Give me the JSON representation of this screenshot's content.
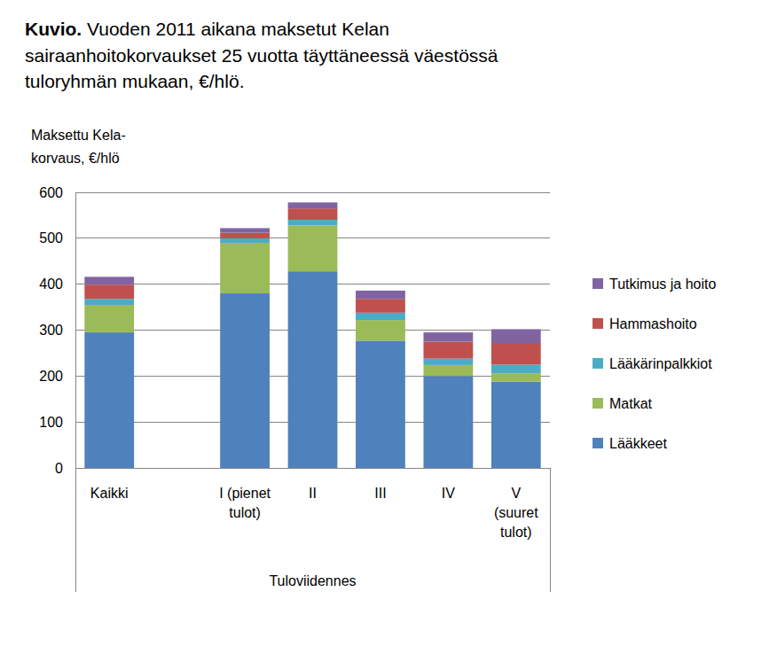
{
  "chart_data": {
    "type": "bar",
    "title": "Kuvio. Vuoden 2011 aikana maksetut Kelan sairaanhoitokorvaukset 25 vuotta täyttäneessä väestössä tuloryhmän mukaan, €/hlö.",
    "y_label": "Maksettu Kela-korvaus, €/hlö",
    "x_label": "Tuloviidennes",
    "categories": [
      "Kaikki",
      null,
      "I (pienet tulot)",
      "II",
      "III",
      "IV",
      "V (suuret tulot)"
    ],
    "series": [
      {
        "name": "Lääkkeet",
        "color": "#4f81bd",
        "values": [
          295,
          null,
          380,
          428,
          277,
          200,
          188
        ]
      },
      {
        "name": "Matkat",
        "color": "#9bbb59",
        "values": [
          60,
          null,
          110,
          100,
          45,
          24,
          18
        ]
      },
      {
        "name": "Lääkärinpalkkiot",
        "color": "#4bacc6",
        "values": [
          13,
          null,
          10,
          12,
          16,
          14,
          19
        ]
      },
      {
        "name": "Hammashoito",
        "color": "#c0504d",
        "values": [
          31,
          null,
          12,
          25,
          30,
          37,
          47
        ]
      },
      {
        "name": "Tutkimus ja hoito",
        "color": "#8064a2",
        "values": [
          17,
          null,
          10,
          13,
          18,
          20,
          30
        ]
      }
    ],
    "ylim": [
      0,
      600
    ],
    "yticks": [
      0,
      100,
      200,
      300,
      400,
      500,
      600
    ],
    "grid": true,
    "stacked": true,
    "legend": "right"
  }
}
